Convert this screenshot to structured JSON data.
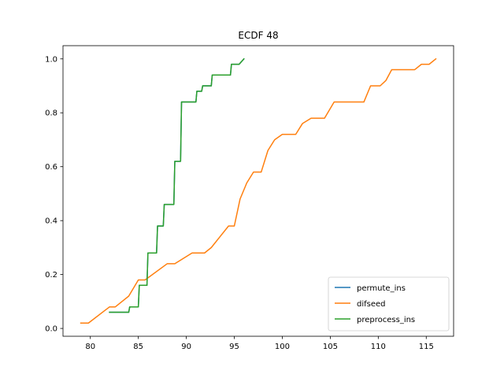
{
  "chart_data": {
    "type": "line",
    "title": "ECDF 48",
    "xlabel": "",
    "ylabel": "",
    "xlim": [
      77.15,
      117.85
    ],
    "ylim": [
      -0.029,
      1.049
    ],
    "xticks": [
      80,
      85,
      90,
      95,
      100,
      105,
      110,
      115
    ],
    "yticks": [
      0.0,
      0.2,
      0.4,
      0.6,
      0.8,
      1.0
    ],
    "xtick_labels": [
      "80",
      "85",
      "90",
      "95",
      "100",
      "105",
      "110",
      "115"
    ],
    "ytick_labels": [
      "0.0",
      "0.2",
      "0.4",
      "0.6",
      "0.8",
      "1.0"
    ],
    "grid": false,
    "legend_position": "lower-right",
    "series": [
      {
        "name": "permute_ins",
        "color": "#1f77b4",
        "x": [
          82,
          84,
          84.1,
          85,
          85.1,
          85.9,
          86,
          86.9,
          87,
          87.6,
          87.7,
          88.7,
          88.8,
          89.4,
          89.5,
          89.9,
          90,
          91,
          91.1,
          91.6,
          91.7,
          92.6,
          92.7,
          94.6,
          94.7,
          95.4,
          95.5,
          96
        ],
        "y": [
          0.06,
          0.06,
          0.08,
          0.08,
          0.16,
          0.16,
          0.28,
          0.28,
          0.38,
          0.38,
          0.46,
          0.46,
          0.62,
          0.62,
          0.84,
          0.84,
          0.84,
          0.84,
          0.88,
          0.88,
          0.9,
          0.9,
          0.94,
          0.94,
          0.98,
          0.98,
          0.98,
          1.0
        ]
      },
      {
        "name": "difseed",
        "color": "#ff7f0e",
        "x": [
          79,
          79.8,
          82,
          82.6,
          84,
          85,
          85.7,
          88,
          88.8,
          90.6,
          91.9,
          92.6,
          93.5,
          94.4,
          95,
          95.6,
          96.3,
          97,
          97.8,
          98.5,
          99.2,
          100,
          101.4,
          102.1,
          103,
          104.4,
          105.4,
          108.5,
          109.2,
          110.2,
          110.8,
          111.4,
          113.8,
          114.5,
          115.3,
          116
        ],
        "y": [
          0.02,
          0.02,
          0.08,
          0.08,
          0.12,
          0.18,
          0.18,
          0.24,
          0.24,
          0.28,
          0.28,
          0.3,
          0.34,
          0.38,
          0.38,
          0.48,
          0.54,
          0.58,
          0.58,
          0.66,
          0.7,
          0.72,
          0.72,
          0.76,
          0.78,
          0.78,
          0.84,
          0.84,
          0.9,
          0.9,
          0.92,
          0.96,
          0.96,
          0.98,
          0.98,
          1.0
        ]
      },
      {
        "name": "preprocess_ins",
        "color": "#2ca02c",
        "x": [
          82,
          84,
          84.1,
          85,
          85.1,
          85.9,
          86,
          86.9,
          87,
          87.6,
          87.7,
          88.7,
          88.8,
          89.4,
          89.5,
          89.9,
          90,
          91,
          91.1,
          91.6,
          91.7,
          92.6,
          92.7,
          94.6,
          94.7,
          95.4,
          95.5,
          96
        ],
        "y": [
          0.06,
          0.06,
          0.08,
          0.08,
          0.16,
          0.16,
          0.28,
          0.28,
          0.38,
          0.38,
          0.46,
          0.46,
          0.62,
          0.62,
          0.84,
          0.84,
          0.84,
          0.84,
          0.88,
          0.88,
          0.9,
          0.9,
          0.94,
          0.94,
          0.98,
          0.98,
          0.98,
          1.0
        ]
      }
    ]
  }
}
